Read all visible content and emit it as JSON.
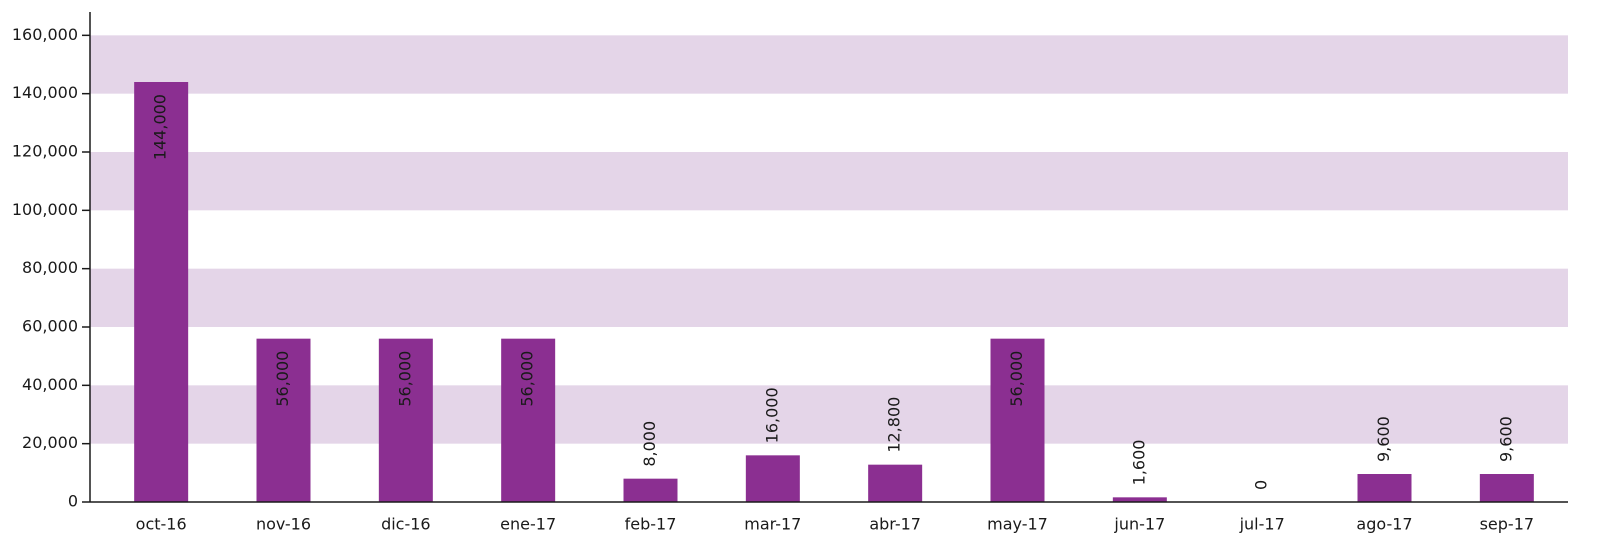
{
  "chart_data": {
    "type": "bar",
    "categories": [
      "oct-16",
      "nov-16",
      "dic-16",
      "ene-17",
      "feb-17",
      "mar-17",
      "abr-17",
      "may-17",
      "jun-17",
      "jul-17",
      "ago-17",
      "sep-17"
    ],
    "values": [
      144000,
      56000,
      56000,
      56000,
      8000,
      16000,
      12800,
      56000,
      1600,
      0,
      9600,
      9600
    ],
    "value_labels": [
      "144,000",
      "56,000",
      "56,000",
      "56,000",
      "8,000",
      "16,000",
      "12,800",
      "56,000",
      "1,600",
      "0",
      "9,600",
      "9,600"
    ],
    "color": "#8b2f91",
    "ylim": [
      0,
      168000
    ],
    "yticks": [
      0,
      {
        "value": 20000,
        "label": "20,000"
      },
      {
        "value": 40000,
        "label": "40,000"
      },
      {
        "value": 60000,
        "label": "60,000"
      },
      {
        "value": 80000,
        "label": "80,000"
      },
      {
        "value": 100000,
        "label": "100,000"
      },
      {
        "value": 120000,
        "label": "120,000"
      },
      {
        "value": 140000,
        "label": "140,000"
      },
      {
        "value": 160000,
        "label": "160,000"
      }
    ],
    "grid": true
  }
}
